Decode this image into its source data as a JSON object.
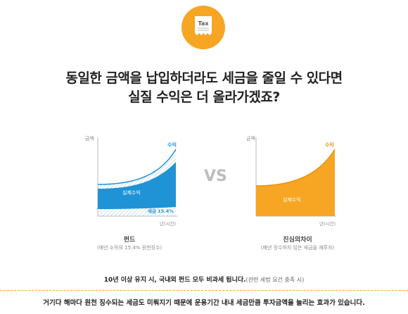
{
  "icon": {
    "name": "tax-receipt-icon",
    "label": "Tax",
    "color": "#f6a623"
  },
  "headline": {
    "line1": "동일한 금액을 납입하더라도 세금을 줄일 수 있다면",
    "line2": "실질 수익은 더 올라가겠죠?"
  },
  "left_chart": {
    "y_label": "금액",
    "x_label": "년(시간)",
    "profit_label": "수익",
    "real_profit_label": "실제수익",
    "tax_label": "세금 15.4%",
    "title": "펀드",
    "subtitle": "(매년 소득의 15.4% 원천징수)",
    "color": "#1f93d6"
  },
  "vs_label": "VS",
  "right_chart": {
    "y_label": "금액",
    "x_label": "년(시간)",
    "profit_label": "수익",
    "real_profit_label": "실제수익",
    "title": "진심의차이",
    "subtitle": "(매년 징수하지 않은 세금을 재투자)",
    "color": "#f6a623"
  },
  "note": {
    "main": "10년 이상 유지 시, 국내외 펀드 모두 비과세 됩니다.",
    "sub": "(관련 세법 요건 충족 시)"
  },
  "bottom_text": "거기다 해마다 원천 징수되는 세금도 미뤄지기 때문에 운용기간 내내 세금만큼 투자금액을 늘리는 효과가 있습니다."
}
